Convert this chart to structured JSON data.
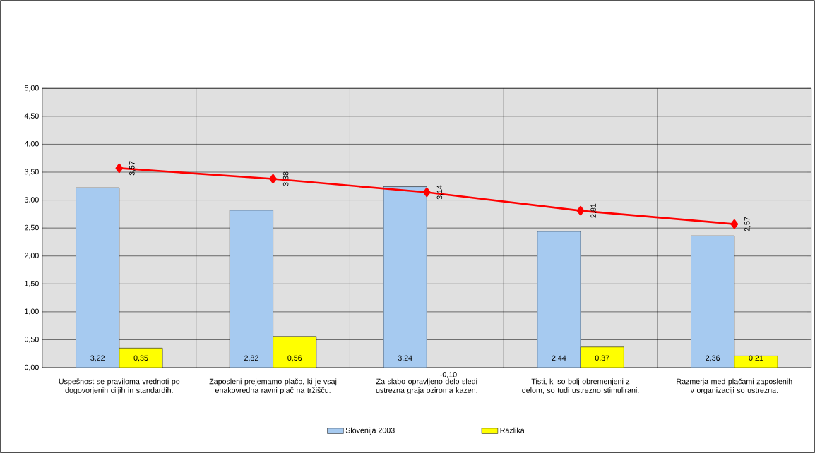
{
  "chart_data": {
    "type": "bar",
    "categories": [
      "Uspešnost se praviloma  vrednoti po dogovorjenih ciljih in standardih.",
      "Zaposleni prejemamo plačo, ki je vsaj enakovredna ravni plač na tržišču.",
      "Za slabo opravljeno delo sledi ustrezna graja oziroma kazen.",
      "Tisti, ki so bolj obremenjeni z delom, so tudi ustrezno stimulirani.",
      "Razmerja med plačami zaposlenih v organizaciji so ustrezna."
    ],
    "series": [
      {
        "name": "Slovenija 2003",
        "color": "#a6caf0",
        "values": [
          3.22,
          2.82,
          3.24,
          2.44,
          2.36
        ],
        "value_labels": [
          "3,22",
          "2,82",
          "3,24",
          "2,44",
          "2,36"
        ]
      },
      {
        "name": "Razlika",
        "color": "#ffff00",
        "values": [
          0.35,
          0.56,
          null,
          0.37,
          0.21
        ],
        "value_labels": [
          "0,35",
          "0,56",
          "-0,10",
          "0,37",
          "0,21"
        ]
      },
      {
        "type": "line",
        "color": "#ff0000",
        "marker": "diamond",
        "values": [
          3.57,
          3.38,
          3.14,
          2.81,
          2.57
        ],
        "value_labels": [
          "3,57",
          "3,38",
          "3,14",
          "2,81",
          "2,57"
        ]
      }
    ],
    "ylim": [
      0,
      5
    ],
    "yticks": [
      {
        "value": 0,
        "label": "0,00"
      },
      {
        "value": 0.5,
        "label": "0,50"
      },
      {
        "value": 1,
        "label": "1,00"
      },
      {
        "value": 1.5,
        "label": "1,50"
      },
      {
        "value": 2,
        "label": "2,00"
      },
      {
        "value": 2.5,
        "label": "2,50"
      },
      {
        "value": 3,
        "label": "3,00"
      },
      {
        "value": 3.5,
        "label": "3,50"
      },
      {
        "value": 4,
        "label": "4,00"
      },
      {
        "value": 4.5,
        "label": "4,50"
      },
      {
        "value": 5,
        "label": "5,00"
      }
    ],
    "grid": true,
    "legend": "bottom"
  }
}
